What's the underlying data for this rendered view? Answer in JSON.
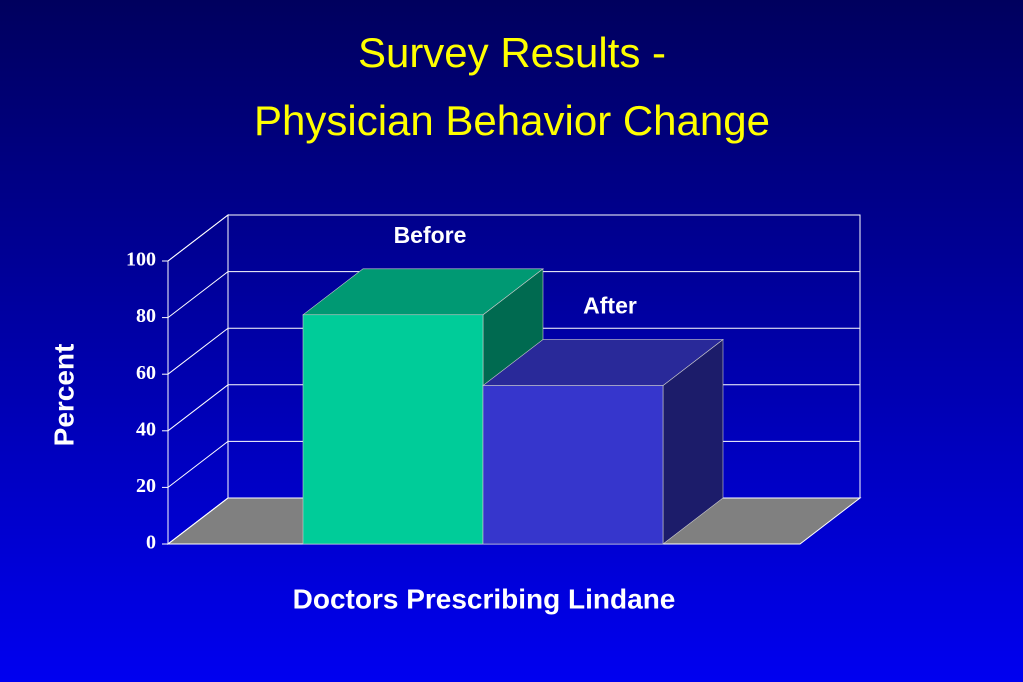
{
  "chart_data": {
    "type": "bar3d",
    "title": [
      "Survey Results -",
      "Physician Behavior Change"
    ],
    "y_label": "Percent",
    "categories": [
      "Doctors Prescribing Lindane"
    ],
    "series": [
      {
        "name": "Before",
        "color": "#00cc99",
        "values": [
          81
        ]
      },
      {
        "name": "After",
        "color": "#3636cc",
        "values": [
          56
        ]
      }
    ],
    "ylim": [
      0,
      100
    ],
    "yticks": [
      0,
      20,
      40,
      60,
      80,
      100
    ],
    "grid": true
  }
}
